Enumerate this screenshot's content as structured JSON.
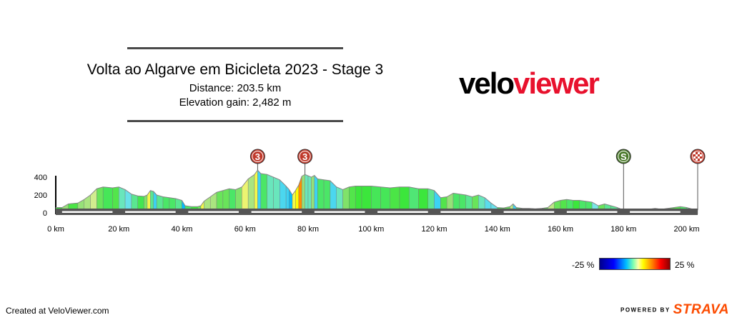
{
  "header": {
    "title": "Volta ao Algarve em Bicicleta 2023 - Stage 3",
    "distance": "Distance: 203.5 km",
    "elevation_gain": "Elevation gain: 2,482 m"
  },
  "logo": {
    "part1": "velo",
    "part2": "viewer",
    "brand_color": "#e8112d"
  },
  "chart_data": {
    "type": "area",
    "xlim": [
      0,
      203.5
    ],
    "ylim": [
      0,
      500
    ],
    "x_ticks": [
      0,
      20,
      40,
      60,
      80,
      100,
      120,
      140,
      160,
      180,
      200
    ],
    "x_tick_labels": [
      "0 km",
      "20 km",
      "40 km",
      "60 km",
      "80 km",
      "100 km",
      "120 km",
      "140 km",
      "160 km",
      "180 km",
      "200 km"
    ],
    "y_ticks": [
      0,
      200,
      400
    ],
    "y_tick_labels": [
      "0",
      "200",
      "400"
    ],
    "points": [
      [
        0,
        60
      ],
      [
        2,
        60
      ],
      [
        4,
        100
      ],
      [
        7,
        110
      ],
      [
        9,
        150
      ],
      [
        11,
        200
      ],
      [
        13,
        270
      ],
      [
        15,
        290
      ],
      [
        18,
        280
      ],
      [
        20,
        290
      ],
      [
        22,
        260
      ],
      [
        24,
        210
      ],
      [
        26,
        190
      ],
      [
        28,
        185
      ],
      [
        29,
        200
      ],
      [
        30,
        250
      ],
      [
        31,
        240
      ],
      [
        32,
        200
      ],
      [
        34,
        180
      ],
      [
        36,
        170
      ],
      [
        38,
        160
      ],
      [
        40,
        140
      ],
      [
        41,
        80
      ],
      [
        43,
        70
      ],
      [
        45,
        70
      ],
      [
        46,
        80
      ],
      [
        47,
        130
      ],
      [
        49,
        180
      ],
      [
        51,
        230
      ],
      [
        53,
        250
      ],
      [
        55,
        270
      ],
      [
        57,
        260
      ],
      [
        59,
        290
      ],
      [
        61,
        380
      ],
      [
        63,
        430
      ],
      [
        64,
        480
      ],
      [
        65,
        440
      ],
      [
        67,
        430
      ],
      [
        69,
        400
      ],
      [
        71,
        370
      ],
      [
        73,
        300
      ],
      [
        74,
        260
      ],
      [
        75,
        200
      ],
      [
        76,
        250
      ],
      [
        77,
        310
      ],
      [
        78,
        410
      ],
      [
        79,
        430
      ],
      [
        80,
        415
      ],
      [
        81,
        400
      ],
      [
        82,
        420
      ],
      [
        83,
        380
      ],
      [
        85,
        370
      ],
      [
        87,
        360
      ],
      [
        89,
        290
      ],
      [
        91,
        260
      ],
      [
        93,
        290
      ],
      [
        95,
        300
      ],
      [
        97,
        300
      ],
      [
        100,
        300
      ],
      [
        103,
        290
      ],
      [
        106,
        280
      ],
      [
        109,
        290
      ],
      [
        112,
        290
      ],
      [
        115,
        270
      ],
      [
        118,
        270
      ],
      [
        120,
        250
      ],
      [
        122,
        170
      ],
      [
        124,
        180
      ],
      [
        126,
        220
      ],
      [
        128,
        210
      ],
      [
        130,
        200
      ],
      [
        132,
        180
      ],
      [
        134,
        200
      ],
      [
        136,
        170
      ],
      [
        138,
        110
      ],
      [
        140,
        60
      ],
      [
        142,
        55
      ],
      [
        144,
        70
      ],
      [
        145,
        100
      ],
      [
        146,
        60
      ],
      [
        148,
        50
      ],
      [
        150,
        50
      ],
      [
        152,
        45
      ],
      [
        154,
        50
      ],
      [
        156,
        60
      ],
      [
        158,
        120
      ],
      [
        160,
        140
      ],
      [
        162,
        150
      ],
      [
        164,
        140
      ],
      [
        166,
        140
      ],
      [
        168,
        130
      ],
      [
        170,
        120
      ],
      [
        172,
        80
      ],
      [
        174,
        100
      ],
      [
        176,
        80
      ],
      [
        178,
        60
      ],
      [
        180,
        30
      ],
      [
        182,
        30
      ],
      [
        184,
        30
      ],
      [
        186,
        30
      ],
      [
        188,
        40
      ],
      [
        190,
        50
      ],
      [
        192,
        40
      ],
      [
        194,
        50
      ],
      [
        196,
        60
      ],
      [
        198,
        70
      ],
      [
        200,
        60
      ],
      [
        202,
        40
      ],
      [
        203.5,
        30
      ]
    ],
    "markers": [
      {
        "km": 64,
        "label": "3",
        "kind": "climb",
        "color": "#c0392b"
      },
      {
        "km": 79,
        "label": "3",
        "kind": "climb",
        "color": "#c0392b"
      },
      {
        "km": 180,
        "label": "S",
        "kind": "sprint",
        "color": "#4a7a2a"
      },
      {
        "km": 203.5,
        "label": "",
        "kind": "finish",
        "color": "#c0392b"
      }
    ]
  },
  "legend": {
    "min_label": "-25 %",
    "max_label": "25 %"
  },
  "footer": {
    "created": "Created at VeloViewer.com",
    "powered_by": "POWERED BY",
    "strava": "STRAVA"
  }
}
